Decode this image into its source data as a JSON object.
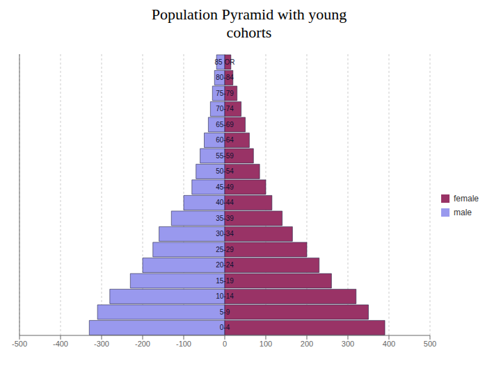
{
  "chart_data": {
    "type": "bar",
    "orientation": "horizontal",
    "title": "Population Pyramid with young\ncohorts",
    "categories": [
      "0-4",
      "5-9",
      "10-14",
      "15-19",
      "20-24",
      "25-29",
      "30-34",
      "35-39",
      "40-44",
      "45-49",
      "50-54",
      "55-59",
      "60-64",
      "65-69",
      "70-74",
      "75-79",
      "80-84",
      "85 OR"
    ],
    "series": [
      {
        "name": "male",
        "color": "#9999ee",
        "values": [
          -330,
          -310,
          -280,
          -230,
          -200,
          -175,
          -160,
          -130,
          -100,
          -80,
          -70,
          -60,
          -50,
          -40,
          -35,
          -30,
          -25,
          -20
        ]
      },
      {
        "name": "female",
        "color": "#993366",
        "values": [
          390,
          350,
          320,
          260,
          230,
          200,
          165,
          140,
          115,
          100,
          85,
          70,
          60,
          50,
          40,
          30,
          20,
          15
        ]
      }
    ],
    "xlim": [
      -500,
      500
    ],
    "xticks": [
      -500,
      -400,
      -300,
      -200,
      -100,
      0,
      100,
      200,
      300,
      400,
      500
    ],
    "grid": true,
    "legend": "right",
    "tick_labels": "x"
  }
}
